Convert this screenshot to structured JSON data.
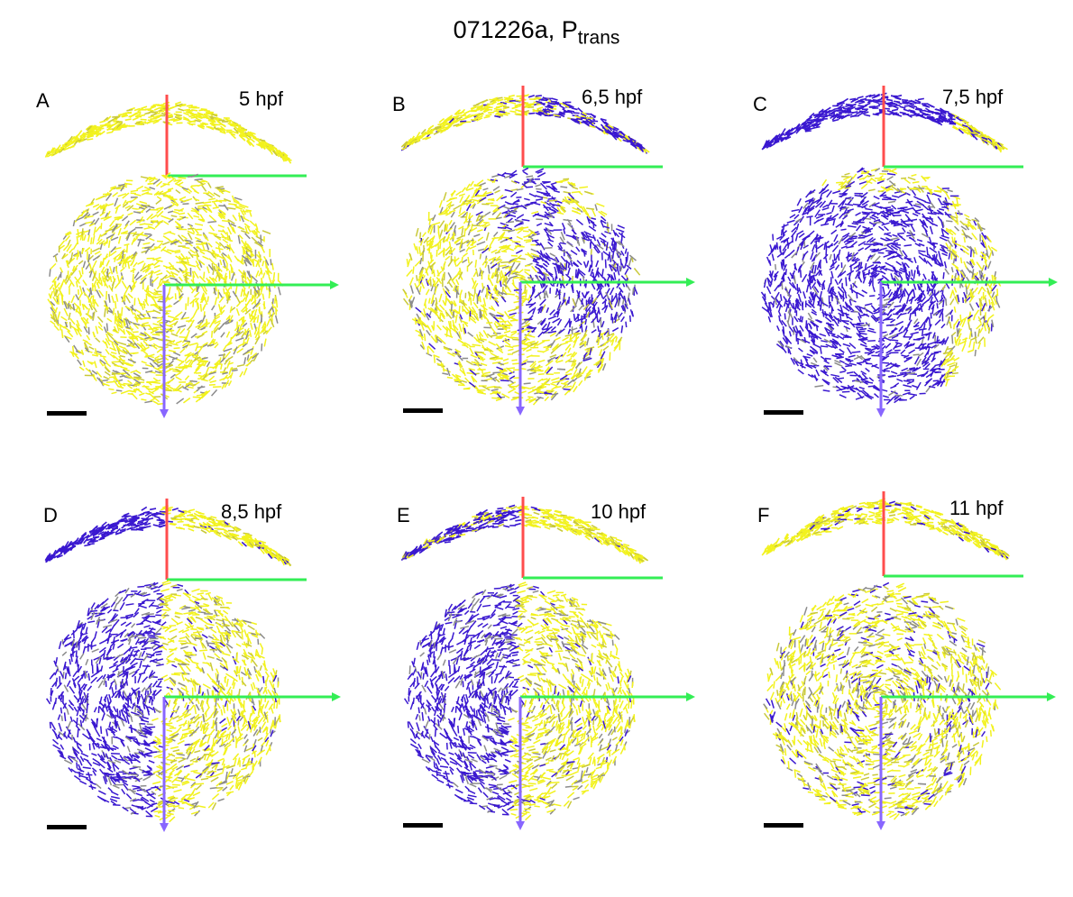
{
  "title": {
    "main": "071226a, P",
    "subscript": "trans"
  },
  "colors": {
    "tissue_primary": "#f2f21e",
    "tissue_secondary": "#c9c93a",
    "gray": "#8c8c8c",
    "blue": "#3a18d0",
    "axis_red": "#ff4d4d",
    "axis_green": "#33ee55",
    "axis_blue": "#8866ff",
    "scale_bar": "#000000"
  },
  "panels": [
    {
      "letter": "A",
      "time": "5 hpf",
      "blue_level": 0.0,
      "blue_side": "none"
    },
    {
      "letter": "B",
      "time": "6,5 hpf",
      "blue_level": 0.35,
      "blue_side": "right"
    },
    {
      "letter": "C",
      "time": "7,5 hpf",
      "blue_level": 0.75,
      "blue_side": "center"
    },
    {
      "letter": "D",
      "time": "8,5 hpf",
      "blue_level": 0.6,
      "blue_side": "left"
    },
    {
      "letter": "E",
      "time": "10 hpf",
      "blue_level": 0.25,
      "blue_side": "left"
    },
    {
      "letter": "F",
      "time": "11 hpf",
      "blue_level": 0.12,
      "blue_side": "scattered"
    }
  ]
}
